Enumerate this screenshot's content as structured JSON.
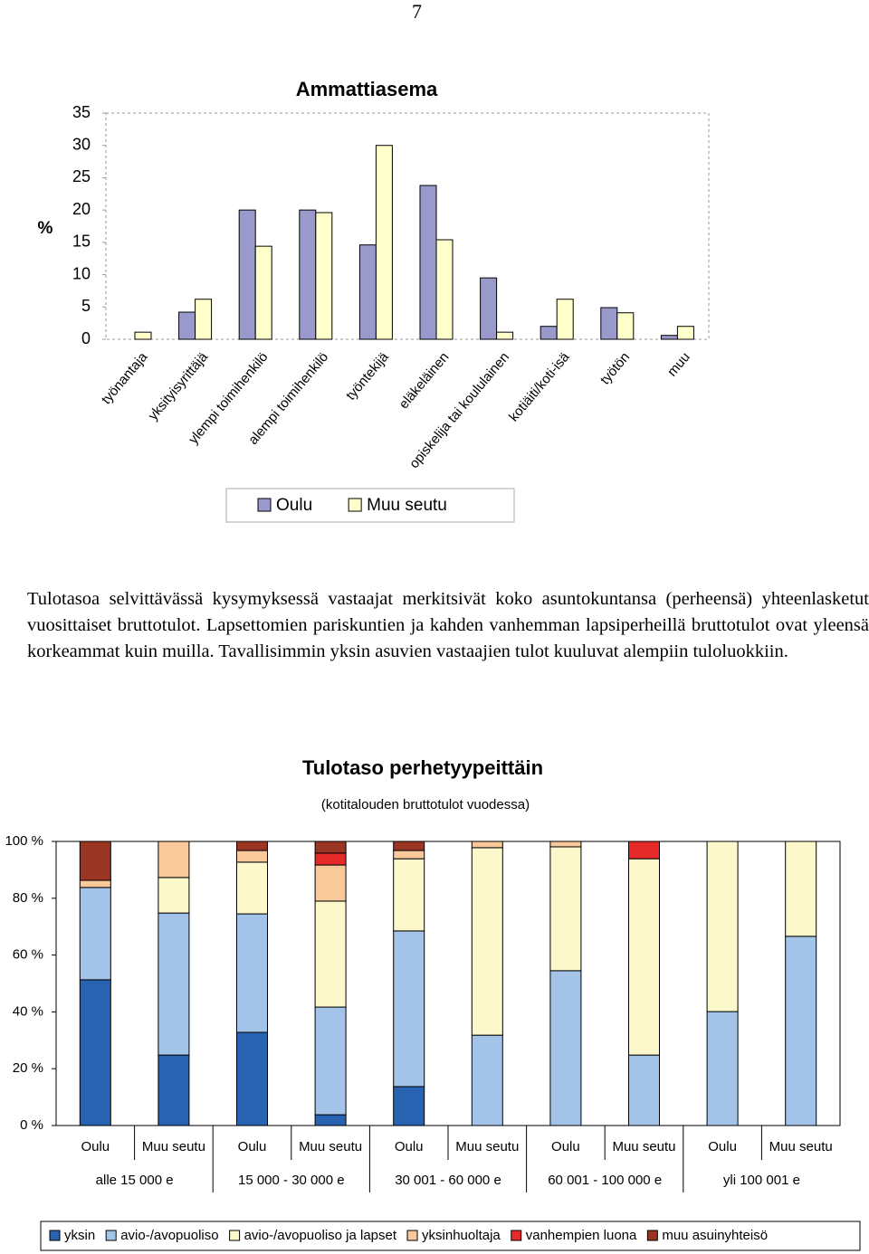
{
  "page_number": "7",
  "paragraph": "Tulotasoa selvittävässä kysymyksessä vastaajat merkitsivät koko asuntokuntansa (perheensä) yhteenlasketut vuosittaiset bruttotulot. Lapsettomien pariskuntien ja kahden vanhemman lapsiperheillä bruttotulot ovat yleensä korkeammat kuin muilla. Tavallisimmin yksin asuvien vastaajien tulot kuuluvat alempiin tuloluokkiin.",
  "chart_data": [
    {
      "type": "bar",
      "title": "Ammattiasema",
      "ylabel": "%",
      "categories": [
        "työnantaja",
        "yksityisyrittäjä",
        "ylempi toimihenkilö",
        "alempi toimihenkilö",
        "työntekijä",
        "eläkeläinen",
        "opiskelija tai koululainen",
        "kotiäiti/koti-isä",
        "työtön",
        "muu"
      ],
      "series": [
        {
          "name": "Oulu",
          "color": "#9999cc",
          "values": [
            0,
            4.2,
            20,
            20,
            14.6,
            23.8,
            9.5,
            2,
            4.9,
            0.6
          ]
        },
        {
          "name": "Muu seutu",
          "color": "#ffffcc",
          "values": [
            1.1,
            6.2,
            14.4,
            19.6,
            30,
            15.4,
            1.1,
            6.2,
            4.1,
            2
          ]
        }
      ],
      "ylim": [
        0,
        35
      ],
      "yticks": [
        0,
        5,
        10,
        15,
        20,
        25,
        30,
        35
      ],
      "legend": "bottom"
    },
    {
      "type": "stacked_bar",
      "title": "Tulotaso perhetyypeittäin",
      "subtitle": "(kotitalouden bruttotulot vuodessa)",
      "categories": [
        "Oulu",
        "Muu seutu",
        "Oulu",
        "Muu seutu",
        "Oulu",
        "Muu seutu",
        "Oulu",
        "Muu seutu",
        "Oulu",
        "Muu seutu"
      ],
      "groups": [
        "alle 15 000 e",
        "15 000 - 30 000 e",
        "30 001 - 60 000 e",
        "60 001 - 100 000 e",
        "yli 100 001 e"
      ],
      "series": [
        {
          "name": "yksin",
          "color": "#2763b1",
          "values": [
            51.3,
            24.8,
            32.8,
            3.8,
            13.7,
            0,
            0,
            0,
            0,
            0
          ]
        },
        {
          "name": "avio-/avopuoliso",
          "color": "#a3c4e8",
          "values": [
            32.5,
            50,
            41.7,
            37.9,
            54.8,
            31.8,
            54.5,
            24.8,
            40.1,
            66.6
          ]
        },
        {
          "name": "avio-/avopuoliso ja lapset",
          "color": "#fdf8cc",
          "values": [
            0,
            12.5,
            18.2,
            37.3,
            25.4,
            66,
            43.6,
            69.1,
            59.9,
            33.4
          ]
        },
        {
          "name": "yksinhuoltaja",
          "color": "#f9c89b",
          "values": [
            2.5,
            12.7,
            4.1,
            12.7,
            2.9,
            2.2,
            1.9,
            0,
            0,
            0
          ]
        },
        {
          "name": "vanhempien luona",
          "color": "#e62a2a",
          "values": [
            0,
            0,
            0,
            4.2,
            0,
            0,
            0,
            6.1,
            0,
            0
          ]
        },
        {
          "name": "muu asuinyhteisö",
          "color": "#9b3524",
          "values": [
            13.7,
            0,
            3.2,
            4.1,
            3.2,
            0,
            0,
            0,
            0,
            0
          ]
        }
      ],
      "ylim": [
        0,
        100
      ],
      "yticks": [
        {
          "value": 0,
          "label": "0 %"
        },
        {
          "value": 20,
          "label": "20 %"
        },
        {
          "value": 40,
          "label": "40 %"
        },
        {
          "value": 60,
          "label": "60 %"
        },
        {
          "value": 80,
          "label": "80 %"
        },
        {
          "value": 100,
          "label": "100 %"
        }
      ],
      "legend": "bottom"
    }
  ]
}
